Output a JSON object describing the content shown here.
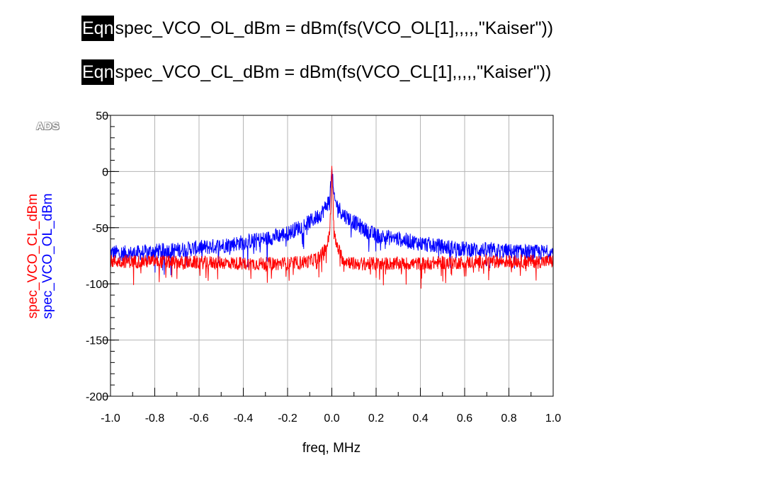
{
  "equations": [
    {
      "tag": "Eqn",
      "text": "spec_VCO_OL_dBm = dBm(fs(VCO_OL[1],,,,,\"Kaiser\"))"
    },
    {
      "tag": "Eqn",
      "text": "spec_VCO_CL_dBm = dBm(fs(VCO_CL[1],,,,,\"Kaiser\"))"
    }
  ],
  "logo": "ADS",
  "chart_data": {
    "type": "line",
    "xlabel": "freq, MHz",
    "xlim": [
      -1.0,
      1.0
    ],
    "ylim": [
      -200,
      50
    ],
    "x_ticks": [
      "-1.0",
      "-0.8",
      "-0.6",
      "-0.4",
      "-0.2",
      "0.0",
      "0.2",
      "0.4",
      "0.6",
      "0.8",
      "1.0"
    ],
    "y_ticks": [
      "50",
      "0",
      "-50",
      "-100",
      "-150",
      "-200"
    ],
    "grid": true,
    "series": [
      {
        "name": "spec_VCO_OL_dBm",
        "color": "#0000ff",
        "x": [
          -1.0,
          -0.9,
          -0.8,
          -0.7,
          -0.6,
          -0.5,
          -0.4,
          -0.3,
          -0.2,
          -0.15,
          -0.1,
          -0.05,
          -0.03,
          -0.01,
          0.0,
          0.01,
          0.03,
          0.05,
          0.1,
          0.15,
          0.2,
          0.3,
          0.4,
          0.5,
          0.6,
          0.7,
          0.8,
          0.9,
          1.0
        ],
        "y": [
          -72,
          -73,
          -71,
          -70,
          -68,
          -66,
          -63,
          -60,
          -55,
          -50,
          -45,
          -38,
          -32,
          -25,
          3,
          -25,
          -32,
          -38,
          -45,
          -52,
          -57,
          -60,
          -64,
          -67,
          -69,
          -70,
          -71,
          -72,
          -72
        ]
      },
      {
        "name": "spec_VCO_CL_dBm",
        "color": "#ff0000",
        "x": [
          -1.0,
          -0.9,
          -0.8,
          -0.7,
          -0.6,
          -0.5,
          -0.4,
          -0.3,
          -0.2,
          -0.1,
          -0.05,
          -0.02,
          -0.01,
          0.0,
          0.01,
          0.02,
          0.05,
          0.1,
          0.2,
          0.3,
          0.4,
          0.5,
          0.6,
          0.7,
          0.8,
          0.9,
          1.0
        ],
        "y": [
          -80,
          -80,
          -80,
          -81,
          -81,
          -81,
          -82,
          -82,
          -82,
          -80,
          -75,
          -65,
          -55,
          5,
          -55,
          -65,
          -78,
          -82,
          -82,
          -82,
          -82,
          -81,
          -81,
          -80,
          -80,
          -80,
          -80
        ]
      }
    ]
  }
}
